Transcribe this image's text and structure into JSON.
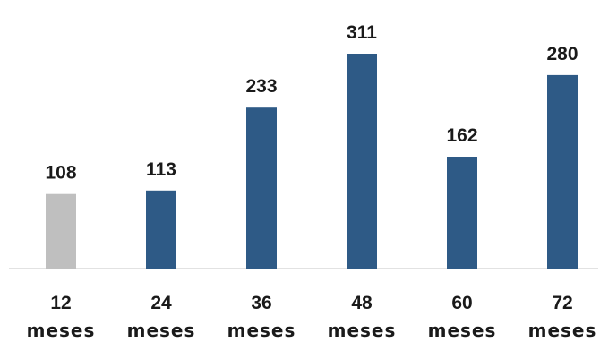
{
  "chart_data": {
    "type": "bar",
    "categories": [
      {
        "line1": "12",
        "line2": "meses"
      },
      {
        "line1": "24",
        "line2": "meses"
      },
      {
        "line1": "36",
        "line2": "meses"
      },
      {
        "line1": "48",
        "line2": "meses"
      },
      {
        "line1": "60",
        "line2": "meses"
      },
      {
        "line1": "72",
        "line2": "meses"
      }
    ],
    "values": [
      108,
      113,
      233,
      311,
      162,
      280
    ],
    "value_labels": [
      "108",
      "113",
      "233",
      "311",
      "162",
      "280"
    ],
    "title": "",
    "xlabel": "",
    "ylabel": "",
    "ylim": [
      0,
      311
    ],
    "grid": false,
    "legend": "none",
    "colors": {
      "bar": "#2e5a86",
      "highlight": "#bfbfbf",
      "axis": "#d9d9d9"
    },
    "highlight_index": 0
  }
}
